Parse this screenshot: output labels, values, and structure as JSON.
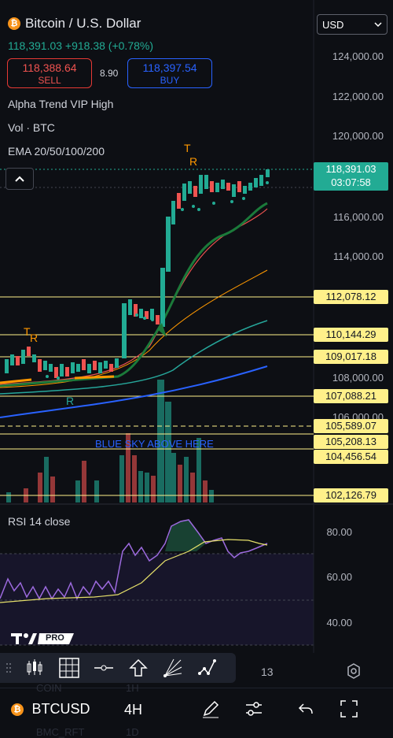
{
  "header": {
    "title": "Bitcoin / U.S. Dollar",
    "price_line": "118,391.03  +918.38 (+0.78%)",
    "sell_price": "118,388.64",
    "sell_label": "SELL",
    "buy_price": "118,397.54",
    "buy_label": "BUY",
    "spread": "8.90",
    "currency": "USD"
  },
  "indicators": [
    "Alpha Trend VIP High",
    "Vol · BTC",
    "EMA 20/50/100/200"
  ],
  "axis_labels": [
    "124,000.00",
    "122,000.00",
    "120,000.00",
    "116,000.00",
    "114,000.00",
    "108,000.00",
    "106,000.00"
  ],
  "current_price": {
    "value": "118,391.03",
    "countdown": "03:07:58"
  },
  "levels": [
    "112,078.12",
    "110,144.29",
    "109,017.18",
    "107,088.21",
    "105,589.07",
    "105,208.13",
    "104,456.54",
    "102,126.79"
  ],
  "annotation": "BLUE SKY ABOVE HERE",
  "markers": {
    "t": "T",
    "r": "R"
  },
  "rsi": {
    "label": "RSI 14 close",
    "ticks": [
      "80.00",
      "60.00",
      "40.00"
    ]
  },
  "tv_pro": "PRO",
  "time_label": "13",
  "bottom": {
    "symbol": "BTCUSD",
    "interval": "4H"
  },
  "ghost_rows": [
    "COIN",
    "1H",
    "BMC_RFT",
    "1D"
  ],
  "colors": {
    "up": "#22ab94",
    "down": "#ef5350",
    "level": "#fff08a",
    "bg": "#0d0f14"
  }
}
